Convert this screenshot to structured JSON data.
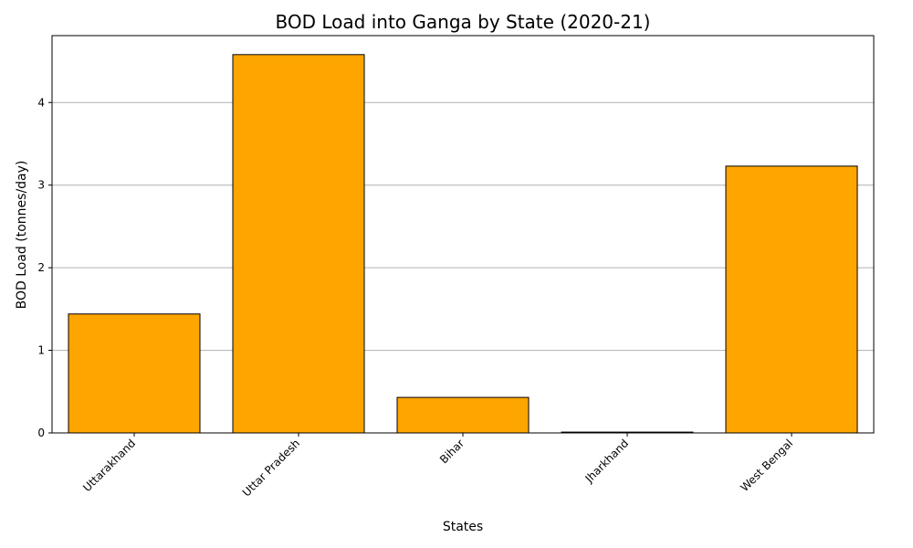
{
  "chart_data": {
    "type": "bar",
    "title": "BOD Load into Ganga by State (2020-21)",
    "xlabel": "States",
    "ylabel": "BOD Load (tonnes/day)",
    "categories": [
      "Uttarakhand",
      "Uttar Pradesh",
      "Bihar",
      "Jharkhand",
      "West Bengal"
    ],
    "values": [
      1.44,
      4.58,
      0.43,
      0.01,
      3.23
    ],
    "ylim": [
      0,
      4.81
    ],
    "yticks": [
      0,
      1,
      2,
      3,
      4
    ],
    "grid": "horizontal",
    "bar_color": "#FFA500",
    "bar_edge_color": "#000000",
    "grid_color": "#b0b0b0"
  }
}
